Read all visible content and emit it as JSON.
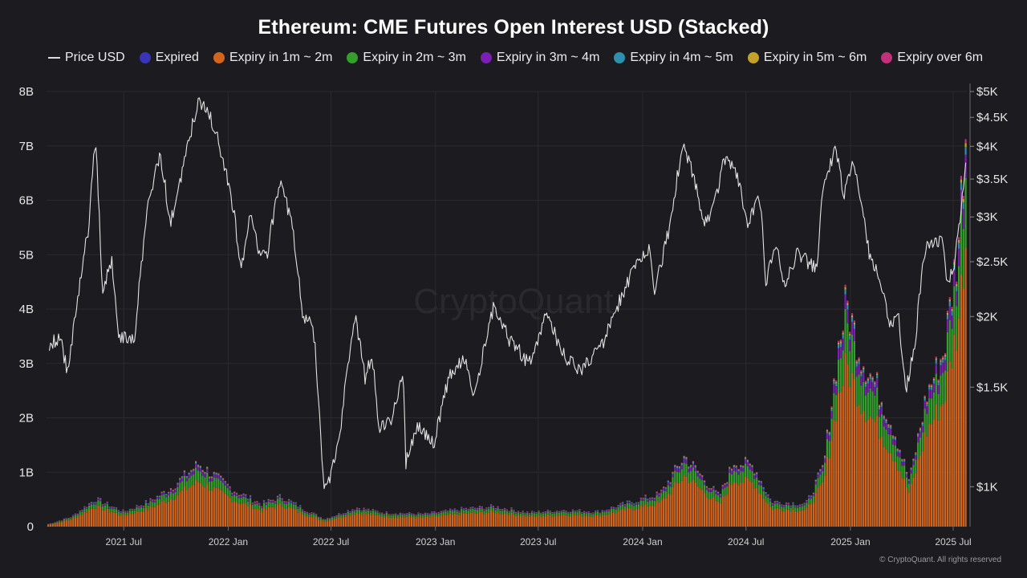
{
  "chart_data": {
    "type": "bar",
    "title": "Ethereum: CME Futures Open Interest USD (Stacked)",
    "watermark": "CryptoQuant",
    "copyright": "© CryptoQuant. All rights reserved",
    "legend": [
      {
        "name": "Price USD",
        "color": "#dcdcdc",
        "kind": "line"
      },
      {
        "name": "Expired",
        "color": "#3a35b8",
        "kind": "dot"
      },
      {
        "name": "Expiry in 1m ~ 2m",
        "color": "#d2651e",
        "kind": "dot"
      },
      {
        "name": "Expiry in 2m ~ 3m",
        "color": "#33a02c",
        "kind": "dot"
      },
      {
        "name": "Expiry in 3m ~ 4m",
        "color": "#7b1fb4",
        "kind": "dot"
      },
      {
        "name": "Expiry in 4m ~ 5m",
        "color": "#2e8fae",
        "kind": "dot"
      },
      {
        "name": "Expiry in 5m ~ 6m",
        "color": "#c5a12a",
        "kind": "dot"
      },
      {
        "name": "Expiry over 6m",
        "color": "#c2307a",
        "kind": "dot"
      }
    ],
    "legend_position": "top",
    "grid": true,
    "x_range": [
      "2021-02-15",
      "2025-07-25"
    ],
    "x_ticks": [
      {
        "date": "2021-07-01",
        "label": "2021 Jul"
      },
      {
        "date": "2022-01-01",
        "label": "2022 Jan"
      },
      {
        "date": "2022-07-01",
        "label": "2022 Jul"
      },
      {
        "date": "2023-01-01",
        "label": "2023 Jan"
      },
      {
        "date": "2023-07-01",
        "label": "2023 Jul"
      },
      {
        "date": "2024-01-01",
        "label": "2024 Jan"
      },
      {
        "date": "2024-07-01",
        "label": "2024 Jul"
      },
      {
        "date": "2025-01-01",
        "label": "2025 Jan"
      },
      {
        "date": "2025-07-01",
        "label": "2025 Jul"
      }
    ],
    "y_left": {
      "range": [
        0,
        8000000000
      ],
      "ticks": [
        {
          "value": 0,
          "label": "0"
        },
        {
          "value": 1000000000,
          "label": "1B"
        },
        {
          "value": 2000000000,
          "label": "2B"
        },
        {
          "value": 3000000000,
          "label": "3B"
        },
        {
          "value": 4000000000,
          "label": "4B"
        },
        {
          "value": 5000000000,
          "label": "5B"
        },
        {
          "value": 6000000000,
          "label": "6B"
        },
        {
          "value": 7000000000,
          "label": "7B"
        },
        {
          "value": 8000000000,
          "label": "8B"
        }
      ]
    },
    "y_right": {
      "scale": "log",
      "range": [
        850,
        5000
      ],
      "ticks": [
        {
          "value": 1000,
          "label": "$1K"
        },
        {
          "value": 1500,
          "label": "$1.5K"
        },
        {
          "value": 2000,
          "label": "$2K"
        },
        {
          "value": 2500,
          "label": "$2.5K"
        },
        {
          "value": 3000,
          "label": "$3K"
        },
        {
          "value": 3500,
          "label": "$3.5K"
        },
        {
          "value": 4000,
          "label": "$4K"
        },
        {
          "value": 4500,
          "label": "$4.5K"
        },
        {
          "value": 5000,
          "label": "$5K"
        }
      ]
    },
    "price_usd": [
      {
        "date": "2021-02-20",
        "value": 1780
      },
      {
        "date": "2021-03-10",
        "value": 1840
      },
      {
        "date": "2021-03-25",
        "value": 1580
      },
      {
        "date": "2021-04-10",
        "value": 2130
      },
      {
        "date": "2021-05-01",
        "value": 2900
      },
      {
        "date": "2021-05-12",
        "value": 4150
      },
      {
        "date": "2021-05-24",
        "value": 2200
      },
      {
        "date": "2021-06-10",
        "value": 2500
      },
      {
        "date": "2021-06-22",
        "value": 1850
      },
      {
        "date": "2021-07-20",
        "value": 1800
      },
      {
        "date": "2021-08-15",
        "value": 3250
      },
      {
        "date": "2021-09-03",
        "value": 3900
      },
      {
        "date": "2021-09-21",
        "value": 2900
      },
      {
        "date": "2021-10-10",
        "value": 3550
      },
      {
        "date": "2021-11-10",
        "value": 4800
      },
      {
        "date": "2021-12-01",
        "value": 4500
      },
      {
        "date": "2021-12-20",
        "value": 3900
      },
      {
        "date": "2022-01-10",
        "value": 3100
      },
      {
        "date": "2022-01-24",
        "value": 2400
      },
      {
        "date": "2022-02-10",
        "value": 3100
      },
      {
        "date": "2022-02-24",
        "value": 2600
      },
      {
        "date": "2022-03-10",
        "value": 2550
      },
      {
        "date": "2022-04-03",
        "value": 3500
      },
      {
        "date": "2022-04-25",
        "value": 2850
      },
      {
        "date": "2022-05-12",
        "value": 2000
      },
      {
        "date": "2022-05-30",
        "value": 1950
      },
      {
        "date": "2022-06-18",
        "value": 1000
      },
      {
        "date": "2022-07-01",
        "value": 1050
      },
      {
        "date": "2022-07-15",
        "value": 1200
      },
      {
        "date": "2022-08-13",
        "value": 1990
      },
      {
        "date": "2022-08-30",
        "value": 1560
      },
      {
        "date": "2022-09-12",
        "value": 1700
      },
      {
        "date": "2022-09-22",
        "value": 1280
      },
      {
        "date": "2022-10-15",
        "value": 1300
      },
      {
        "date": "2022-11-05",
        "value": 1600
      },
      {
        "date": "2022-11-10",
        "value": 1100
      },
      {
        "date": "2022-12-01",
        "value": 1270
      },
      {
        "date": "2022-12-30",
        "value": 1190
      },
      {
        "date": "2023-01-25",
        "value": 1560
      },
      {
        "date": "2023-02-20",
        "value": 1700
      },
      {
        "date": "2023-03-10",
        "value": 1430
      },
      {
        "date": "2023-04-15",
        "value": 2100
      },
      {
        "date": "2023-05-10",
        "value": 1830
      },
      {
        "date": "2023-06-15",
        "value": 1650
      },
      {
        "date": "2023-07-14",
        "value": 2000
      },
      {
        "date": "2023-08-20",
        "value": 1680
      },
      {
        "date": "2023-09-15",
        "value": 1600
      },
      {
        "date": "2023-10-24",
        "value": 1800
      },
      {
        "date": "2023-11-15",
        "value": 2050
      },
      {
        "date": "2023-12-10",
        "value": 2350
      },
      {
        "date": "2024-01-12",
        "value": 2650
      },
      {
        "date": "2024-01-23",
        "value": 2200
      },
      {
        "date": "2024-02-20",
        "value": 2950
      },
      {
        "date": "2024-03-12",
        "value": 4050
      },
      {
        "date": "2024-04-01",
        "value": 3500
      },
      {
        "date": "2024-04-17",
        "value": 2950
      },
      {
        "date": "2024-05-05",
        "value": 3100
      },
      {
        "date": "2024-05-27",
        "value": 3900
      },
      {
        "date": "2024-06-15",
        "value": 3550
      },
      {
        "date": "2024-07-05",
        "value": 2900
      },
      {
        "date": "2024-07-25",
        "value": 3250
      },
      {
        "date": "2024-08-05",
        "value": 2300
      },
      {
        "date": "2024-08-25",
        "value": 2700
      },
      {
        "date": "2024-09-06",
        "value": 2250
      },
      {
        "date": "2024-10-01",
        "value": 2600
      },
      {
        "date": "2024-11-04",
        "value": 2400
      },
      {
        "date": "2024-11-12",
        "value": 3300
      },
      {
        "date": "2024-12-06",
        "value": 4000
      },
      {
        "date": "2024-12-20",
        "value": 3300
      },
      {
        "date": "2025-01-06",
        "value": 3700
      },
      {
        "date": "2025-02-03",
        "value": 2600
      },
      {
        "date": "2025-02-28",
        "value": 2200
      },
      {
        "date": "2025-03-11",
        "value": 1900
      },
      {
        "date": "2025-03-25",
        "value": 2050
      },
      {
        "date": "2025-04-09",
        "value": 1470
      },
      {
        "date": "2025-04-25",
        "value": 1800
      },
      {
        "date": "2025-05-13",
        "value": 2650
      },
      {
        "date": "2025-06-10",
        "value": 2750
      },
      {
        "date": "2025-06-22",
        "value": 2250
      },
      {
        "date": "2025-07-05",
        "value": 2550
      },
      {
        "date": "2025-07-15",
        "value": 3100
      },
      {
        "date": "2025-07-24",
        "value": 3700
      }
    ],
    "open_interest_total": [
      {
        "date": "2021-02-20",
        "value": 50000000
      },
      {
        "date": "2021-04-01",
        "value": 200000000
      },
      {
        "date": "2021-05-12",
        "value": 550000000
      },
      {
        "date": "2021-07-01",
        "value": 300000000
      },
      {
        "date": "2021-08-15",
        "value": 500000000
      },
      {
        "date": "2021-09-20",
        "value": 750000000
      },
      {
        "date": "2021-11-10",
        "value": 1250000000
      },
      {
        "date": "2021-12-15",
        "value": 950000000
      },
      {
        "date": "2022-01-15",
        "value": 700000000
      },
      {
        "date": "2022-03-01",
        "value": 450000000
      },
      {
        "date": "2022-04-05",
        "value": 600000000
      },
      {
        "date": "2022-05-15",
        "value": 350000000
      },
      {
        "date": "2022-06-20",
        "value": 150000000
      },
      {
        "date": "2022-08-15",
        "value": 380000000
      },
      {
        "date": "2022-10-01",
        "value": 280000000
      },
      {
        "date": "2022-12-15",
        "value": 250000000
      },
      {
        "date": "2023-02-15",
        "value": 350000000
      },
      {
        "date": "2023-04-15",
        "value": 400000000
      },
      {
        "date": "2023-06-15",
        "value": 280000000
      },
      {
        "date": "2023-08-15",
        "value": 330000000
      },
      {
        "date": "2023-10-15",
        "value": 300000000
      },
      {
        "date": "2023-12-15",
        "value": 500000000
      },
      {
        "date": "2024-02-01",
        "value": 650000000
      },
      {
        "date": "2024-03-15",
        "value": 1400000000
      },
      {
        "date": "2024-05-15",
        "value": 600000000
      },
      {
        "date": "2024-06-10",
        "value": 1300000000
      },
      {
        "date": "2024-07-15",
        "value": 1200000000
      },
      {
        "date": "2024-08-15",
        "value": 500000000
      },
      {
        "date": "2024-10-15",
        "value": 450000000
      },
      {
        "date": "2024-11-15",
        "value": 1200000000
      },
      {
        "date": "2024-12-10",
        "value": 3500000000
      },
      {
        "date": "2024-12-25",
        "value": 4450000000
      },
      {
        "date": "2025-01-20",
        "value": 3400000000
      },
      {
        "date": "2025-02-20",
        "value": 2700000000
      },
      {
        "date": "2025-03-20",
        "value": 1900000000
      },
      {
        "date": "2025-04-15",
        "value": 900000000
      },
      {
        "date": "2025-05-15",
        "value": 2600000000
      },
      {
        "date": "2025-06-15",
        "value": 3500000000
      },
      {
        "date": "2025-07-10",
        "value": 5600000000
      },
      {
        "date": "2025-07-22",
        "value": 7850000000
      }
    ],
    "open_interest_mix": {
      "note_series_order": [
        "Expired",
        "Expiry in 1m ~ 2m",
        "Expiry in 2m ~ 3m",
        "Expiry in 3m ~ 4m",
        "Expiry in 4m ~ 5m",
        "Expiry in 5m ~ 6m",
        "Expiry over 6m"
      ],
      "typical_share": [
        0.0,
        0.72,
        0.18,
        0.06,
        0.02,
        0.01,
        0.01
      ]
    }
  }
}
